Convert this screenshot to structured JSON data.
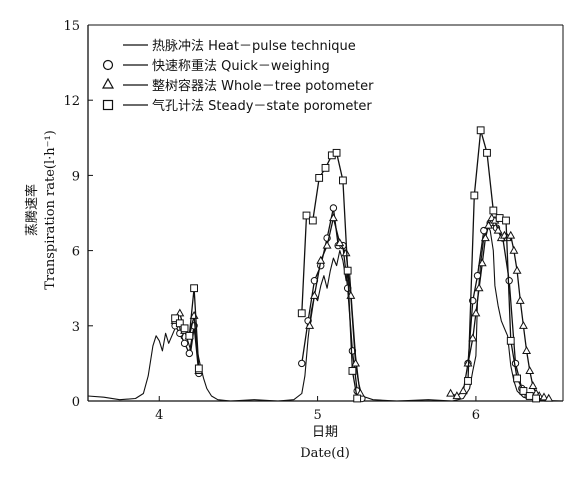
{
  "chart_data": {
    "type": "line",
    "xlabel_cn": "日期",
    "xlabel": "Date(d)",
    "ylabel_cn": "蒸腾速率",
    "ylabel": "Transpiration rate(l·h⁻¹)",
    "xlim": [
      3.55,
      6.55
    ],
    "ylim": [
      0,
      15
    ],
    "x_ticks": [
      "4",
      "5",
      "6"
    ],
    "y_ticks": [
      "0",
      "3",
      "6",
      "9",
      "12",
      "15"
    ],
    "grid": false,
    "legend_position": "top-left",
    "series": [
      {
        "name": "热脉冲法 Heat－pulse technique",
        "marker": "none",
        "points": [
          [
            3.55,
            0.2
          ],
          [
            3.65,
            0.15
          ],
          [
            3.75,
            0.05
          ],
          [
            3.85,
            0.1
          ],
          [
            3.9,
            0.3
          ],
          [
            3.93,
            1.0
          ],
          [
            3.96,
            2.2
          ],
          [
            3.98,
            2.6
          ],
          [
            4.0,
            2.4
          ],
          [
            4.02,
            2.0
          ],
          [
            4.04,
            2.7
          ],
          [
            4.06,
            2.3
          ],
          [
            4.08,
            2.6
          ],
          [
            4.1,
            2.9
          ],
          [
            4.12,
            3.3
          ],
          [
            4.14,
            2.5
          ],
          [
            4.16,
            2.8
          ],
          [
            4.18,
            2.4
          ],
          [
            4.2,
            2.0
          ],
          [
            4.22,
            2.9
          ],
          [
            4.24,
            2.0
          ],
          [
            4.26,
            1.4
          ],
          [
            4.28,
            0.9
          ],
          [
            4.3,
            0.5
          ],
          [
            4.33,
            0.2
          ],
          [
            4.37,
            0.05
          ],
          [
            4.45,
            0.0
          ],
          [
            4.6,
            0.05
          ],
          [
            4.75,
            0.0
          ],
          [
            4.85,
            0.05
          ],
          [
            4.9,
            0.3
          ],
          [
            4.92,
            1.0
          ],
          [
            4.94,
            2.5
          ],
          [
            4.96,
            3.6
          ],
          [
            4.98,
            4.2
          ],
          [
            5.0,
            4.0
          ],
          [
            5.02,
            4.6
          ],
          [
            5.04,
            5.0
          ],
          [
            5.06,
            4.5
          ],
          [
            5.08,
            5.2
          ],
          [
            5.1,
            5.7
          ],
          [
            5.12,
            5.4
          ],
          [
            5.14,
            6.0
          ],
          [
            5.16,
            5.6
          ],
          [
            5.18,
            4.8
          ],
          [
            5.2,
            5.3
          ],
          [
            5.22,
            3.5
          ],
          [
            5.24,
            1.8
          ],
          [
            5.26,
            0.7
          ],
          [
            5.28,
            0.2
          ],
          [
            5.35,
            0.05
          ],
          [
            5.5,
            0.0
          ],
          [
            5.7,
            0.05
          ],
          [
            5.85,
            0.0
          ],
          [
            5.92,
            0.1
          ],
          [
            5.96,
            0.5
          ],
          [
            5.98,
            1.2
          ],
          [
            6.0,
            1.8
          ],
          [
            6.01,
            4.0
          ],
          [
            6.03,
            5.5
          ],
          [
            6.05,
            6.5
          ],
          [
            6.07,
            7.0
          ],
          [
            6.09,
            6.8
          ],
          [
            6.11,
            6.0
          ],
          [
            6.12,
            4.6
          ],
          [
            6.14,
            3.8
          ],
          [
            6.16,
            3.2
          ],
          [
            6.18,
            2.9
          ],
          [
            6.2,
            2.6
          ],
          [
            6.22,
            1.4
          ],
          [
            6.24,
            0.8
          ],
          [
            6.26,
            0.4
          ],
          [
            6.3,
            0.15
          ],
          [
            6.36,
            0.05
          ],
          [
            6.45,
            0.02
          ],
          [
            6.55,
            0.0
          ]
        ]
      },
      {
        "name": "快速称重法 Quick－weighing",
        "marker": "circle",
        "points": [
          [
            4.1,
            3.0
          ],
          [
            4.13,
            2.7
          ],
          [
            4.16,
            2.3
          ],
          [
            4.19,
            1.9
          ],
          [
            4.22,
            3.0
          ],
          [
            4.25,
            1.1
          ],
          [
            4.9,
            1.5
          ],
          [
            4.94,
            3.2
          ],
          [
            4.98,
            4.8
          ],
          [
            5.02,
            5.4
          ],
          [
            5.06,
            6.5
          ],
          [
            5.1,
            7.7
          ],
          [
            5.13,
            6.2
          ],
          [
            5.16,
            6.2
          ],
          [
            5.19,
            4.5
          ],
          [
            5.22,
            2.0
          ],
          [
            5.25,
            0.4
          ],
          [
            5.28,
            0.1
          ],
          [
            5.95,
            1.5
          ],
          [
            5.98,
            4.0
          ],
          [
            6.01,
            5.0
          ],
          [
            6.05,
            6.8
          ],
          [
            6.09,
            7.1
          ],
          [
            6.13,
            6.9
          ],
          [
            6.17,
            6.5
          ],
          [
            6.21,
            4.8
          ],
          [
            6.25,
            1.5
          ],
          [
            6.29,
            0.5
          ],
          [
            6.33,
            0.2
          ]
        ]
      },
      {
        "name": "整树容器法 Whole－tree potometer",
        "marker": "triangle",
        "points": [
          [
            4.1,
            3.2
          ],
          [
            4.13,
            3.5
          ],
          [
            4.16,
            2.8
          ],
          [
            4.19,
            2.6
          ],
          [
            4.22,
            3.4
          ],
          [
            4.25,
            1.2
          ],
          [
            4.95,
            3.0
          ],
          [
            4.98,
            4.2
          ],
          [
            5.02,
            5.6
          ],
          [
            5.06,
            6.2
          ],
          [
            5.1,
            7.3
          ],
          [
            5.14,
            6.3
          ],
          [
            5.18,
            5.9
          ],
          [
            5.21,
            4.2
          ],
          [
            5.24,
            1.5
          ],
          [
            5.27,
            0.3
          ],
          [
            5.84,
            0.3
          ],
          [
            5.88,
            0.2
          ],
          [
            5.92,
            0.4
          ],
          [
            5.95,
            1.5
          ],
          [
            5.98,
            2.5
          ],
          [
            6.0,
            3.5
          ],
          [
            6.02,
            4.5
          ],
          [
            6.04,
            5.5
          ],
          [
            6.06,
            6.5
          ],
          [
            6.08,
            7.0
          ],
          [
            6.1,
            7.3
          ],
          [
            6.12,
            7.2
          ],
          [
            6.14,
            6.8
          ],
          [
            6.16,
            6.5
          ],
          [
            6.18,
            6.6
          ],
          [
            6.2,
            6.5
          ],
          [
            6.22,
            6.6
          ],
          [
            6.24,
            6.0
          ],
          [
            6.26,
            5.2
          ],
          [
            6.28,
            4.0
          ],
          [
            6.3,
            3.0
          ],
          [
            6.32,
            2.0
          ],
          [
            6.34,
            1.2
          ],
          [
            6.36,
            0.6
          ],
          [
            6.38,
            0.3
          ],
          [
            6.4,
            0.2
          ],
          [
            6.43,
            0.15
          ],
          [
            6.46,
            0.1
          ]
        ]
      },
      {
        "name": "气孔计法 Steady－state porometer",
        "marker": "square",
        "points": [
          [
            4.1,
            3.3
          ],
          [
            4.13,
            3.1
          ],
          [
            4.16,
            2.9
          ],
          [
            4.19,
            2.6
          ],
          [
            4.22,
            4.5
          ],
          [
            4.25,
            1.3
          ],
          [
            4.9,
            3.5
          ],
          [
            4.93,
            7.4
          ],
          [
            4.97,
            7.2
          ],
          [
            5.01,
            8.9
          ],
          [
            5.05,
            9.3
          ],
          [
            5.09,
            9.8
          ],
          [
            5.12,
            9.9
          ],
          [
            5.16,
            8.8
          ],
          [
            5.19,
            5.2
          ],
          [
            5.22,
            1.2
          ],
          [
            5.25,
            0.1
          ],
          [
            5.95,
            0.8
          ],
          [
            5.99,
            8.2
          ],
          [
            6.03,
            10.8
          ],
          [
            6.07,
            9.9
          ],
          [
            6.11,
            7.6
          ],
          [
            6.15,
            7.3
          ],
          [
            6.19,
            7.2
          ],
          [
            6.22,
            2.4
          ],
          [
            6.26,
            0.9
          ],
          [
            6.3,
            0.4
          ],
          [
            6.34,
            0.2
          ],
          [
            6.38,
            0.1
          ]
        ]
      }
    ]
  }
}
